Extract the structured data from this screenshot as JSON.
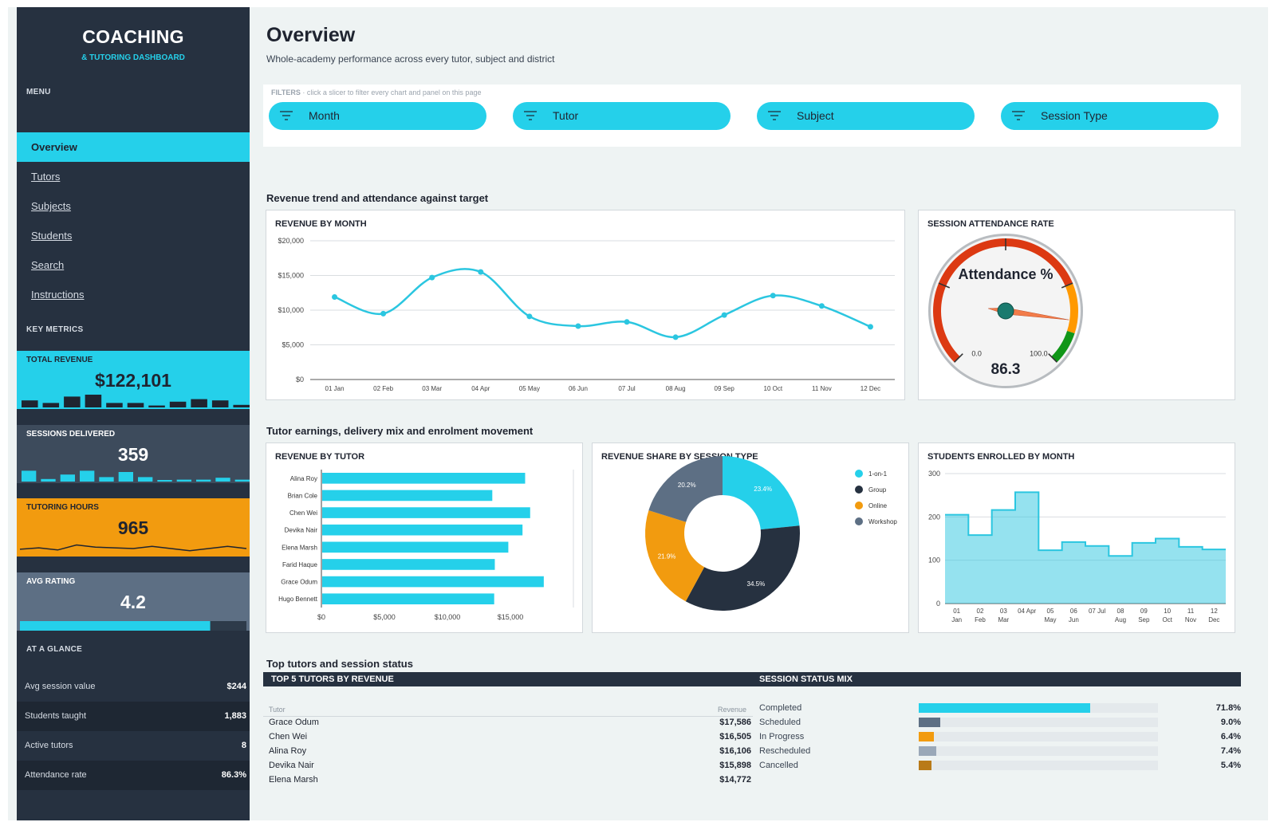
{
  "app": {
    "title": "COACHING",
    "subtitle": "& TUTORING DASHBOARD"
  },
  "sidebar": {
    "menu_heading": "MENU",
    "items": [
      {
        "label": "Overview",
        "active": true
      },
      {
        "label": "Tutors"
      },
      {
        "label": "Subjects"
      },
      {
        "label": "Students"
      },
      {
        "label": "Search"
      },
      {
        "label": "Instructions"
      }
    ],
    "metrics_heading": "KEY METRICS",
    "kpis": [
      {
        "label": "TOTAL REVENUE",
        "value": "$122,101",
        "color": "#25d0ea",
        "spark_type": "bars",
        "spark": [
          0.55,
          0.35,
          0.85,
          1.0,
          0.35,
          0.35,
          0.15,
          0.45,
          0.65,
          0.55,
          0.2
        ]
      },
      {
        "label": "SESSIONS DELIVERED",
        "value": "359",
        "color": "#3d4b5c",
        "spark_type": "bars",
        "spark": [
          0.85,
          0.2,
          0.55,
          0.85,
          0.35,
          0.75,
          0.35,
          0.1,
          0.15,
          0.15,
          0.3,
          0.15
        ]
      },
      {
        "label": "TUTORING HOURS",
        "value": "965",
        "color": "#f29b0f",
        "spark_type": "line",
        "spark": [
          0.45,
          0.55,
          0.4,
          0.75,
          0.6,
          0.55,
          0.5,
          0.65,
          0.5,
          0.35,
          0.5,
          0.65,
          0.5
        ]
      },
      {
        "label": "AVG RATING",
        "value": "4.2",
        "color": "#5d6f84",
        "spark_type": "progress",
        "progress": 0.84
      }
    ],
    "glance_heading": "AT A GLANCE",
    "glance": [
      {
        "label": "Avg session value",
        "value": "$244"
      },
      {
        "label": "Students taught",
        "value": "1,883"
      },
      {
        "label": "Active tutors",
        "value": "8"
      },
      {
        "label": "Attendance rate",
        "value": "86.3%"
      }
    ]
  },
  "header": {
    "title": "Overview",
    "subtitle": "Whole-academy performance across every tutor, subject and district"
  },
  "filters": {
    "heading": "FILTERS",
    "hint": "click a slicer to filter every chart and panel on this page",
    "slicers": [
      "Month",
      "Tutor",
      "Subject",
      "Session Type"
    ]
  },
  "sections": {
    "s1": "Revenue trend and attendance against target",
    "s2": "Tutor earnings, delivery mix and enrolment movement",
    "s3": "Top tutors and session status"
  },
  "chart_data": [
    {
      "type": "line",
      "title": "REVENUE BY MONTH",
      "x": [
        "01 Jan",
        "02 Feb",
        "03 Mar",
        "04 Apr",
        "05 May",
        "06 Jun",
        "07 Jul",
        "08 Aug",
        "09 Sep",
        "10 Oct",
        "11 Nov",
        "12 Dec"
      ],
      "y": [
        11900,
        9500,
        14700,
        15500,
        9100,
        7700,
        8300,
        6100,
        9300,
        12100,
        10600,
        7600
      ],
      "yticks": [
        "$0",
        "$5,000",
        "$10,000",
        "$15,000",
        "$20,000"
      ],
      "ylim": [
        0,
        20000
      ],
      "grid": true,
      "color": "#2bc6e0"
    },
    {
      "type": "gauge",
      "title": "SESSION ATTENDANCE RATE",
      "label": "Attendance %",
      "value": 86.3,
      "value_text": "86.3",
      "min_label": "0.0",
      "max_label": "100.0",
      "range": [
        0,
        100
      ],
      "bands": [
        {
          "from": 0,
          "to": 75,
          "color": "#dc3912"
        },
        {
          "from": 75,
          "to": 90,
          "color": "#ff9900"
        },
        {
          "from": 90,
          "to": 100,
          "color": "#109618"
        }
      ]
    },
    {
      "type": "bar",
      "orientation": "horizontal",
      "title": "REVENUE BY TUTOR",
      "categories": [
        "Alina Roy",
        "Brian Cole",
        "Chen Wei",
        "Devika Nair",
        "Elena Marsh",
        "Farid Haque",
        "Grace Odum",
        "Hugo Bennett"
      ],
      "values": [
        16106,
        13500,
        16505,
        15898,
        14772,
        13700,
        17586,
        13650
      ],
      "xticks": [
        "$0",
        "$5,000",
        "$10,000",
        "$15,000"
      ],
      "xlim": [
        0,
        20000
      ],
      "color": "#25d0ea"
    },
    {
      "type": "pie",
      "donut": true,
      "title": "REVENUE SHARE BY SESSION TYPE",
      "legend": "right",
      "slices": [
        {
          "label": "1-on-1",
          "value": 23.4,
          "text": "23.4%",
          "color": "#25d0ea"
        },
        {
          "label": "Group",
          "value": 34.5,
          "text": "34.5%",
          "color": "#263140"
        },
        {
          "label": "Online",
          "value": 21.9,
          "text": "21.9%",
          "color": "#f29b0f"
        },
        {
          "label": "Workshop",
          "value": 20.2,
          "text": "20.2%",
          "color": "#5d6f84"
        }
      ]
    },
    {
      "type": "area",
      "step": true,
      "title": "STUDENTS ENROLLED BY MONTH",
      "x": [
        [
          "01",
          "Jan"
        ],
        [
          "02",
          "Feb"
        ],
        [
          "03",
          "Mar"
        ],
        [
          "04 Apr",
          ""
        ],
        [
          "05",
          "May"
        ],
        [
          "06",
          "Jun"
        ],
        [
          "07 Jul",
          ""
        ],
        [
          "08",
          "Aug"
        ],
        [
          "09",
          "Sep"
        ],
        [
          "10",
          "Oct"
        ],
        [
          "11",
          "Nov"
        ],
        [
          "12",
          "Dec"
        ]
      ],
      "y": [
        205,
        158,
        216,
        257,
        123,
        142,
        133,
        110,
        140,
        150,
        131,
        125
      ],
      "yticks": [
        "0",
        "100",
        "200",
        "300"
      ],
      "ylim": [
        0,
        300
      ],
      "color": "#2bc6e0"
    }
  ],
  "top_tutors": {
    "heading": "TOP 5 TUTORS BY REVENUE",
    "col_tutor": "Tutor",
    "col_revenue": "Revenue",
    "rows": [
      {
        "name": "Grace Odum",
        "revenue": "$17,586"
      },
      {
        "name": "Chen Wei",
        "revenue": "$16,505"
      },
      {
        "name": "Alina Roy",
        "revenue": "$16,106"
      },
      {
        "name": "Devika Nair",
        "revenue": "$15,898"
      },
      {
        "name": "Elena Marsh",
        "revenue": "$14,772"
      }
    ]
  },
  "status_mix": {
    "heading": "SESSION STATUS MIX",
    "rows": [
      {
        "label": "Completed",
        "pct_text": "71.8%",
        "pct": 71.8,
        "color": "#25d0ea"
      },
      {
        "label": "Scheduled",
        "pct_text": "9.0%",
        "pct": 9.0,
        "color": "#5d6f84"
      },
      {
        "label": "In Progress",
        "pct_text": "6.4%",
        "pct": 6.4,
        "color": "#f29b0f"
      },
      {
        "label": "Rescheduled",
        "pct_text": "7.4%",
        "pct": 7.4,
        "color": "#9aa8b8"
      },
      {
        "label": "Cancelled",
        "pct_text": "5.4%",
        "pct": 5.4,
        "color": "#b97a18"
      }
    ]
  }
}
